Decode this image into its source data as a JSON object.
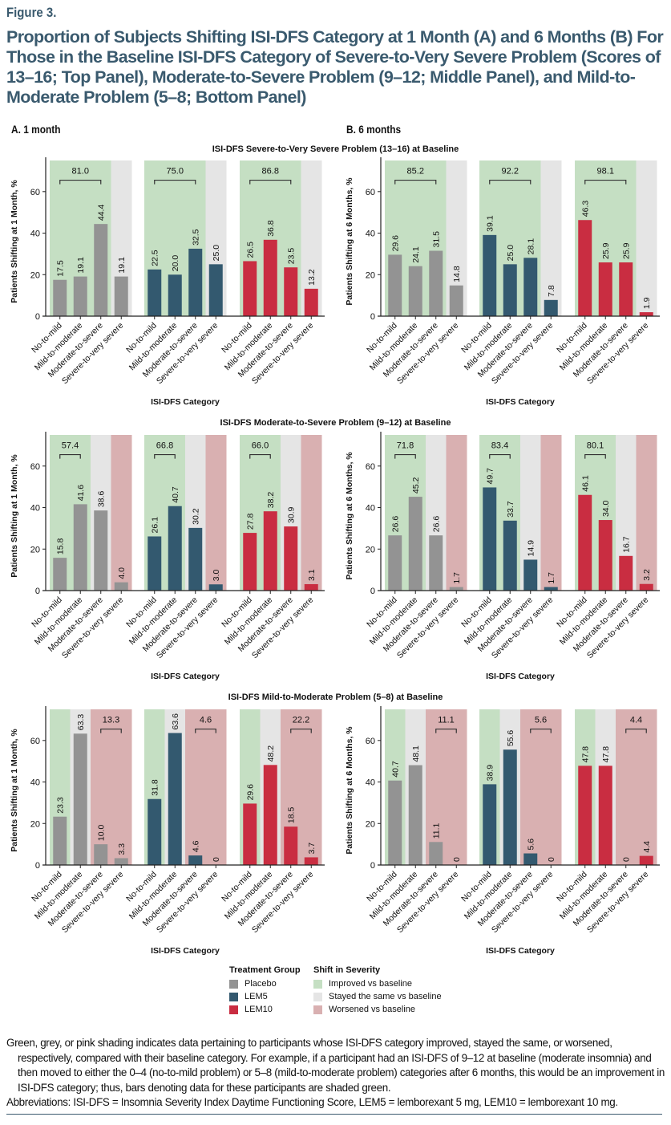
{
  "figure_label": "Figure 3.",
  "figure_title": "Proportion of Subjects Shifting ISI-DFS Category at 1 Month (A) and 6 Months (B) For Those in the Baseline ISI-DFS Category of Severe-to-Very Severe Problem (Scores of 13–16; Top Panel), Moderate-to-Severe Problem (9–12; Middle Panel), and Mild-to-Moderate Problem (5–8; Bottom Panel)",
  "column_headers": {
    "a": "A. 1 month",
    "b": "B. 6 months"
  },
  "colors": {
    "placebo": "#939393",
    "lem5": "#33596f",
    "lem10": "#c92d41",
    "improved": "#c5dfc3",
    "same": "#e5e5e5",
    "worsened": "#d9b0b1"
  },
  "legend": {
    "treatment_title": "Treatment Group",
    "treatment_items": [
      {
        "label": "Placebo",
        "color_key": "placebo"
      },
      {
        "label": "LEM5",
        "color_key": "lem5"
      },
      {
        "label": "LEM10",
        "color_key": "lem10"
      }
    ],
    "shift_title": "Shift in Severity",
    "shift_items": [
      {
        "label": "Improved vs baseline",
        "color_key": "improved"
      },
      {
        "label": "Stayed the same vs baseline",
        "color_key": "same"
      },
      {
        "label": "Worsened vs baseline",
        "color_key": "worsened"
      }
    ]
  },
  "footnote": {
    "paragraph": "Green, grey, or pink shading indicates data pertaining to participants whose ISI-DFS category improved, stayed the same, or worsened, respectively, compared with their baseline category. For example, if a participant had an ISI-DFS of 9–12 at baseline (moderate insomnia) and then moved to either the 0–4 (no-to-mild problem) or 5–8 (mild-to-moderate problem) categories after 6 months, this would be an improvement in ISI-DFS category; thus, bars denoting data for these participants are shaded green.",
    "abbreviations": "Abbreviations: ISI-DFS = Insomnia Severity Index Daytime Functioning Score, LEM5 = lemborexant 5 mg, LEM10 = lemborexant 10 mg."
  },
  "panel_titles": [
    "ISI-DFS Severe-to-Very Severe Problem (13–16) at Baseline",
    "ISI-DFS Moderate-to-Severe Problem (9–12) at Baseline",
    "ISI-DFS Mild-to-Moderate Problem (5–8) at Baseline"
  ],
  "chart_data": [
    {
      "type": "bar",
      "id": "top-1month",
      "title": "ISI-DFS Severe-to-Very Severe Problem (13–16) at Baseline",
      "xlabel": "ISI-DFS Category",
      "ylabel": "Patients Shifting at 1 Month, %",
      "ylim": [
        0,
        75
      ],
      "yticks": [
        0,
        20,
        40,
        60
      ],
      "categories": [
        "No-to-mild",
        "Mild-to-moderate",
        "Moderate-to-severe",
        "Severe-to-very severe"
      ],
      "shading": [
        "improved",
        "improved",
        "improved",
        "same"
      ],
      "bracket": {
        "from": 0,
        "to": 2
      },
      "series": [
        {
          "name": "Placebo",
          "values": [
            17.5,
            19.1,
            44.4,
            19.1
          ],
          "labels": [
            "17.5",
            "19.1",
            "44.4",
            "19.1"
          ],
          "bracket_total": "81.0"
        },
        {
          "name": "LEM5",
          "values": [
            22.5,
            20.0,
            32.5,
            25.0
          ],
          "labels": [
            "22.5",
            "20.0",
            "32.5",
            "25.0"
          ],
          "bracket_total": "75.0"
        },
        {
          "name": "LEM10",
          "values": [
            26.5,
            36.8,
            23.5,
            13.2
          ],
          "labels": [
            "26.5",
            "36.8",
            "23.5",
            "13.2"
          ],
          "bracket_total": "86.8"
        }
      ]
    },
    {
      "type": "bar",
      "id": "top-6months",
      "title": "ISI-DFS Severe-to-Very Severe Problem (13–16) at Baseline",
      "xlabel": "ISI-DFS Category",
      "ylabel": "Patients Shifting at 6 Months, %",
      "ylim": [
        0,
        75
      ],
      "yticks": [
        0,
        20,
        40,
        60
      ],
      "categories": [
        "No-to-mild",
        "Mild-to-moderate",
        "Moderate-to-severe",
        "Severe-to-very severe"
      ],
      "shading": [
        "improved",
        "improved",
        "improved",
        "same"
      ],
      "bracket": {
        "from": 0,
        "to": 2
      },
      "series": [
        {
          "name": "Placebo",
          "values": [
            29.6,
            24.1,
            31.5,
            14.8
          ],
          "labels": [
            "29.6",
            "24.1",
            "31.5",
            "14.8"
          ],
          "bracket_total": "85.2"
        },
        {
          "name": "LEM5",
          "values": [
            39.1,
            25.0,
            28.1,
            7.8
          ],
          "labels": [
            "39.1",
            "25.0",
            "28.1",
            "7.8"
          ],
          "bracket_total": "92.2"
        },
        {
          "name": "LEM10",
          "values": [
            46.3,
            25.9,
            25.9,
            1.9
          ],
          "labels": [
            "46.3",
            "25.9",
            "25.9",
            "1.9"
          ],
          "bracket_total": "98.1"
        }
      ]
    },
    {
      "type": "bar",
      "id": "mid-1month",
      "title": "ISI-DFS Moderate-to-Severe Problem (9–12) at Baseline",
      "xlabel": "ISI-DFS Category",
      "ylabel": "Patients Shifting at 1 Month, %",
      "ylim": [
        0,
        75
      ],
      "yticks": [
        0,
        20,
        40,
        60
      ],
      "categories": [
        "No-to-mild",
        "Mild-to-moderate",
        "Moderate-to-severe",
        "Severe-to-very severe"
      ],
      "shading": [
        "improved",
        "improved",
        "same",
        "worsened"
      ],
      "bracket": {
        "from": 0,
        "to": 1
      },
      "series": [
        {
          "name": "Placebo",
          "values": [
            15.8,
            41.6,
            38.6,
            4.0
          ],
          "labels": [
            "15.8",
            "41.6",
            "38.6",
            "4.0"
          ],
          "bracket_total": "57.4"
        },
        {
          "name": "LEM5",
          "values": [
            26.1,
            40.7,
            30.2,
            3.0
          ],
          "labels": [
            "26.1",
            "40.7",
            "30.2",
            "3.0"
          ],
          "bracket_total": "66.8"
        },
        {
          "name": "LEM10",
          "values": [
            27.8,
            38.2,
            30.9,
            3.1
          ],
          "labels": [
            "27.8",
            "38.2",
            "30.9",
            "3.1"
          ],
          "bracket_total": "66.0"
        }
      ]
    },
    {
      "type": "bar",
      "id": "mid-6months",
      "title": "ISI-DFS Moderate-to-Severe Problem (9–12) at Baseline",
      "xlabel": "ISI-DFS Category",
      "ylabel": "Patients Shifting at 6 Months, %",
      "ylim": [
        0,
        75
      ],
      "yticks": [
        0,
        20,
        40,
        60
      ],
      "categories": [
        "No-to-mild",
        "Mild-to-moderate",
        "Moderate-to-severe",
        "Severe-to-very severe"
      ],
      "shading": [
        "improved",
        "improved",
        "same",
        "worsened"
      ],
      "bracket": {
        "from": 0,
        "to": 1
      },
      "series": [
        {
          "name": "Placebo",
          "values": [
            26.6,
            45.2,
            26.6,
            1.7
          ],
          "labels": [
            "26.6",
            "45.2",
            "26.6",
            "1.7"
          ],
          "bracket_total": "71.8"
        },
        {
          "name": "LEM5",
          "values": [
            49.7,
            33.7,
            14.9,
            1.7
          ],
          "labels": [
            "49.7",
            "33.7",
            "14.9",
            "1.7"
          ],
          "bracket_total": "83.4"
        },
        {
          "name": "LEM10",
          "values": [
            46.1,
            34.0,
            16.7,
            3.2
          ],
          "labels": [
            "46.1",
            "34.0",
            "16.7",
            "3.2"
          ],
          "bracket_total": "80.1"
        }
      ]
    },
    {
      "type": "bar",
      "id": "bot-1month",
      "title": "ISI-DFS Mild-to-Moderate Problem (5–8) at Baseline",
      "xlabel": "ISI-DFS Category",
      "ylabel": "Patients Shifting at 1 Month, %",
      "ylim": [
        0,
        75
      ],
      "yticks": [
        0,
        20,
        40,
        60
      ],
      "categories": [
        "No-to-mild",
        "Mild-to-moderate",
        "Moderate-to-severe",
        "Severe-to-very severe"
      ],
      "shading": [
        "improved",
        "same",
        "worsened",
        "worsened"
      ],
      "bracket": {
        "from": 2,
        "to": 3
      },
      "series": [
        {
          "name": "Placebo",
          "values": [
            23.3,
            63.3,
            10.0,
            3.3
          ],
          "labels": [
            "23.3",
            "63.3",
            "10.0",
            "3.3"
          ],
          "bracket_total": "13.3"
        },
        {
          "name": "LEM5",
          "values": [
            31.8,
            63.6,
            4.6,
            0
          ],
          "labels": [
            "31.8",
            "63.6",
            "4.6",
            "0"
          ],
          "bracket_total": "4.6"
        },
        {
          "name": "LEM10",
          "values": [
            29.6,
            48.2,
            18.5,
            3.7
          ],
          "labels": [
            "29.6",
            "48.2",
            "18.5",
            "3.7"
          ],
          "bracket_total": "22.2"
        }
      ]
    },
    {
      "type": "bar",
      "id": "bot-6months",
      "title": "ISI-DFS Mild-to-Moderate Problem (5–8) at Baseline",
      "xlabel": "ISI-DFS Category",
      "ylabel": "Patients Shifting at 6 Months, %",
      "ylim": [
        0,
        75
      ],
      "yticks": [
        0,
        20,
        40,
        60
      ],
      "categories": [
        "No-to-mild",
        "Mild-to-moderate",
        "Moderate-to-severe",
        "Severe-to-very severe"
      ],
      "shading": [
        "improved",
        "same",
        "worsened",
        "worsened"
      ],
      "bracket": {
        "from": 2,
        "to": 3
      },
      "series": [
        {
          "name": "Placebo",
          "values": [
            40.7,
            48.1,
            11.1,
            0
          ],
          "labels": [
            "40.7",
            "48.1",
            "11.1",
            "0"
          ],
          "bracket_total": "11.1"
        },
        {
          "name": "LEM5",
          "values": [
            38.9,
            55.6,
            5.6,
            0
          ],
          "labels": [
            "38.9",
            "55.6",
            "5.6",
            "0"
          ],
          "bracket_total": "5.6"
        },
        {
          "name": "LEM10",
          "values": [
            47.8,
            47.8,
            0,
            4.4
          ],
          "labels": [
            "47.8",
            "47.8",
            "0",
            "4.4"
          ],
          "bracket_total": "4.4"
        }
      ]
    }
  ]
}
